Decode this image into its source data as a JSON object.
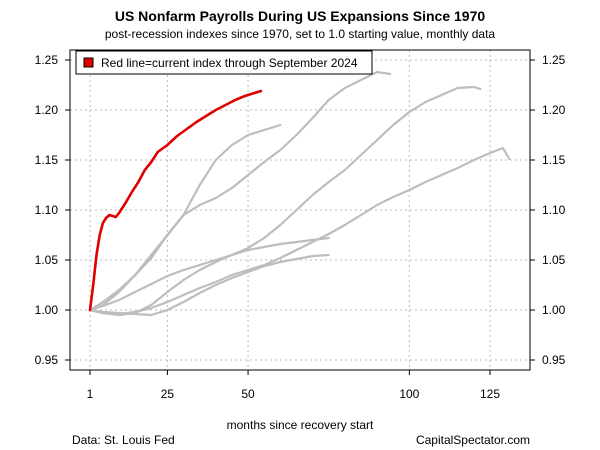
{
  "header": {
    "title": "US Nonfarm Payrolls During US Expansions Since 1970",
    "subtitle": "post-recession indexes since 1970, set to 1.0 starting value, monthly data"
  },
  "footer": {
    "source": "Data: St. Louis Fed",
    "credit": "CapitalSpectator.com"
  },
  "colors": {
    "current": "#e00000",
    "history": "#bdbdbd",
    "grid": "#bbbbbb"
  },
  "chart_data": {
    "type": "line",
    "title": "US Nonfarm Payrolls During US Expansions Since 1970",
    "subtitle": "post-recession indexes since 1970, set to 1.0 starting value, monthly data",
    "xlabel": "months since recovery start",
    "ylabel": "",
    "xlim": [
      1,
      131
    ],
    "ylim": [
      0.94,
      1.26
    ],
    "x_ticks": [
      1,
      25,
      50,
      100,
      125
    ],
    "y_ticks": [
      0.95,
      1.0,
      1.05,
      1.1,
      1.15,
      1.2,
      1.25
    ],
    "y_tick_labels": [
      "0.95",
      "1.00",
      "1.05",
      "1.10",
      "1.15",
      "1.20",
      "1.25"
    ],
    "grid": true,
    "legend": {
      "position": "top-left",
      "label": "Red line=current index through September 2024"
    },
    "series": [
      {
        "name": "Red line=current index through September 2024",
        "color": "current",
        "x": [
          1,
          2,
          3,
          4,
          5,
          6,
          7,
          8,
          9,
          10,
          12,
          14,
          16,
          18,
          20,
          22,
          25,
          28,
          31,
          34,
          37,
          40,
          43,
          46,
          49,
          52,
          54
        ],
        "y": [
          1.0,
          1.025,
          1.055,
          1.075,
          1.087,
          1.092,
          1.095,
          1.094,
          1.093,
          1.097,
          1.107,
          1.118,
          1.128,
          1.14,
          1.148,
          1.158,
          1.165,
          1.174,
          1.181,
          1.188,
          1.194,
          1.2,
          1.205,
          1.21,
          1.214,
          1.217,
          1.219
        ]
      },
      {
        "color": "history",
        "x": [
          1,
          5,
          10,
          15,
          20,
          25,
          30,
          35,
          40,
          45,
          50,
          55,
          60,
          65,
          70,
          75
        ],
        "y": [
          1.0,
          0.998,
          0.997,
          0.996,
          0.995,
          1.0,
          1.008,
          1.017,
          1.025,
          1.032,
          1.038,
          1.044,
          1.048,
          1.051,
          1.054,
          1.055
        ]
      },
      {
        "color": "history",
        "x": [
          1,
          5,
          10,
          15,
          20,
          25,
          30,
          35,
          40,
          45,
          50,
          55,
          60
        ],
        "y": [
          1.0,
          1.008,
          1.02,
          1.035,
          1.052,
          1.075,
          1.095,
          1.125,
          1.15,
          1.165,
          1.175,
          1.18,
          1.185
        ]
      },
      {
        "color": "history",
        "x": [
          1,
          5,
          10,
          15,
          20,
          25,
          30,
          35,
          40,
          45,
          50,
          55,
          60,
          65,
          70,
          75,
          80,
          85,
          90,
          94
        ],
        "y": [
          1.0,
          1.005,
          1.018,
          1.035,
          1.055,
          1.075,
          1.095,
          1.105,
          1.112,
          1.122,
          1.135,
          1.148,
          1.16,
          1.175,
          1.192,
          1.21,
          1.222,
          1.23,
          1.238,
          1.236
        ]
      },
      {
        "color": "history",
        "x": [
          1,
          5,
          10,
          15,
          20,
          25,
          30,
          35,
          40,
          45,
          50,
          55,
          60,
          65,
          70,
          75,
          80,
          85,
          90,
          95,
          100,
          105,
          110,
          115,
          120,
          122
        ],
        "y": [
          1.0,
          0.997,
          0.995,
          0.997,
          1.005,
          1.018,
          1.03,
          1.04,
          1.048,
          1.055,
          1.062,
          1.072,
          1.085,
          1.1,
          1.115,
          1.128,
          1.14,
          1.155,
          1.17,
          1.185,
          1.198,
          1.208,
          1.215,
          1.222,
          1.223,
          1.221
        ]
      },
      {
        "color": "history",
        "x": [
          1,
          5,
          10,
          15,
          20,
          25,
          30,
          35,
          40,
          45,
          50,
          55,
          60,
          65,
          70,
          75,
          80,
          85,
          90,
          95,
          100,
          105,
          110,
          115,
          120,
          125,
          129,
          131
        ],
        "y": [
          1.0,
          0.997,
          0.996,
          0.998,
          1.002,
          1.008,
          1.015,
          1.022,
          1.028,
          1.035,
          1.04,
          1.045,
          1.052,
          1.06,
          1.068,
          1.076,
          1.085,
          1.095,
          1.105,
          1.113,
          1.12,
          1.128,
          1.135,
          1.142,
          1.15,
          1.157,
          1.162,
          1.151
        ]
      },
      {
        "color": "history",
        "x": [
          1,
          5,
          10,
          15,
          20,
          25,
          30,
          35,
          40,
          45,
          50,
          55,
          60,
          65,
          70,
          75
        ],
        "y": [
          1.0,
          1.004,
          1.01,
          1.018,
          1.026,
          1.034,
          1.04,
          1.045,
          1.05,
          1.055,
          1.06,
          1.063,
          1.066,
          1.068,
          1.07,
          1.072
        ]
      }
    ]
  }
}
